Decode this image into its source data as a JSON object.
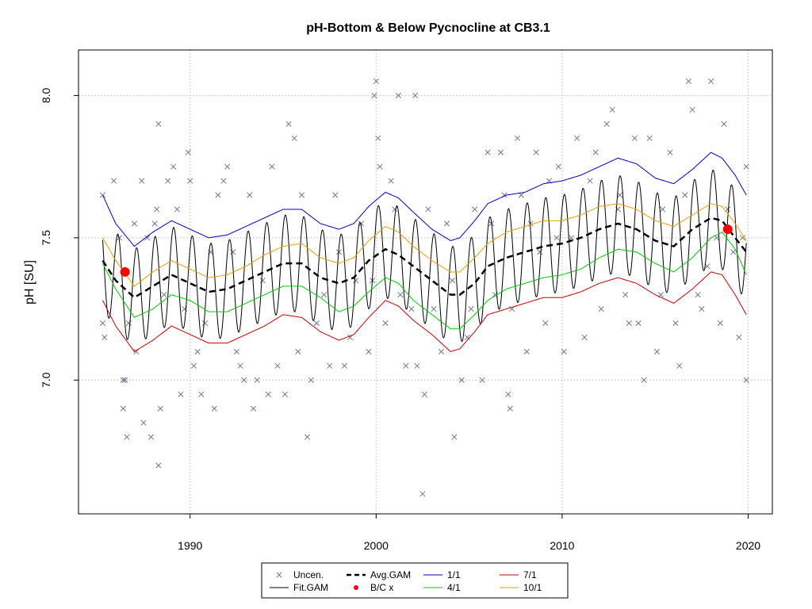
{
  "chart_data": {
    "type": "scatter",
    "title": "pH-Bottom & Below Pycnocline at CB3.1",
    "xlabel": "",
    "ylabel": "pH [SU]",
    "xlim": [
      1984.0,
      2021.3
    ],
    "ylim": [
      6.53,
      8.16
    ],
    "x_ticks": [
      1990,
      2000,
      2010,
      2020
    ],
    "y_ticks": [
      7.0,
      7.5,
      8.0
    ],
    "y_tick_labels": [
      "7.0",
      "7.5",
      "8.0"
    ],
    "grid": true,
    "legend_position": "bottom-center",
    "legend": [
      {
        "label": "Uncen.",
        "symbol": "x",
        "color": "#6a7a8e"
      },
      {
        "label": "Fit.GAM",
        "symbol": "line",
        "color": "#000000"
      },
      {
        "label": "Avg.GAM",
        "symbol": "dashed",
        "color": "#000000"
      },
      {
        "label": "B/C x",
        "symbol": "dot",
        "color": "#ff0000"
      },
      {
        "label": "1/1",
        "symbol": "line",
        "color": "#0000cc"
      },
      {
        "label": "4/1",
        "symbol": "line",
        "color": "#00cc00"
      },
      {
        "label": "7/1",
        "symbol": "line",
        "color": "#cc0000"
      },
      {
        "label": "10/1",
        "symbol": "line",
        "color": "#e6a000"
      }
    ],
    "series": [
      {
        "name": "Uncen.",
        "type": "scatter",
        "color": "#6a7a8e",
        "points": [
          [
            1985.3,
            7.65
          ],
          [
            1985.3,
            7.2
          ],
          [
            1985.4,
            7.15
          ],
          [
            1985.9,
            7.7
          ],
          [
            1986.2,
            7.5
          ],
          [
            1986.4,
            7.0
          ],
          [
            1986.4,
            6.9
          ],
          [
            1986.5,
            7.0
          ],
          [
            1986.6,
            6.8
          ],
          [
            1986.7,
            7.2
          ],
          [
            1987.0,
            7.55
          ],
          [
            1987.1,
            7.1
          ],
          [
            1987.4,
            7.7
          ],
          [
            1987.5,
            6.85
          ],
          [
            1987.7,
            7.5
          ],
          [
            1987.9,
            6.8
          ],
          [
            1988.1,
            7.55
          ],
          [
            1988.2,
            7.6
          ],
          [
            1988.3,
            7.9
          ],
          [
            1988.3,
            6.7
          ],
          [
            1988.4,
            6.9
          ],
          [
            1988.6,
            7.3
          ],
          [
            1988.8,
            7.7
          ],
          [
            1989.1,
            7.75
          ],
          [
            1989.3,
            7.6
          ],
          [
            1989.5,
            6.95
          ],
          [
            1989.7,
            7.25
          ],
          [
            1989.9,
            7.8
          ],
          [
            1990.0,
            7.7
          ],
          [
            1990.2,
            7.05
          ],
          [
            1990.4,
            7.1
          ],
          [
            1990.6,
            6.95
          ],
          [
            1990.8,
            7.2
          ],
          [
            1991.1,
            7.45
          ],
          [
            1991.3,
            6.9
          ],
          [
            1991.5,
            7.65
          ],
          [
            1991.8,
            7.7
          ],
          [
            1992.0,
            7.75
          ],
          [
            1992.3,
            7.45
          ],
          [
            1992.5,
            7.1
          ],
          [
            1992.7,
            7.05
          ],
          [
            1992.9,
            7.0
          ],
          [
            1993.2,
            7.65
          ],
          [
            1993.4,
            6.9
          ],
          [
            1993.6,
            7.0
          ],
          [
            1993.9,
            7.35
          ],
          [
            1994.2,
            6.95
          ],
          [
            1994.4,
            7.75
          ],
          [
            1994.7,
            7.05
          ],
          [
            1995.1,
            6.95
          ],
          [
            1995.3,
            7.9
          ],
          [
            1995.6,
            7.85
          ],
          [
            1995.8,
            7.1
          ],
          [
            1996.0,
            7.65
          ],
          [
            1996.3,
            6.8
          ],
          [
            1996.5,
            7.0
          ],
          [
            1996.8,
            7.2
          ],
          [
            1997.2,
            7.3
          ],
          [
            1997.5,
            7.05
          ],
          [
            1997.8,
            7.65
          ],
          [
            1998.0,
            7.45
          ],
          [
            1998.3,
            7.05
          ],
          [
            1998.6,
            7.15
          ],
          [
            1998.9,
            7.35
          ],
          [
            1999.2,
            7.55
          ],
          [
            1999.6,
            7.1
          ],
          [
            1999.8,
            7.35
          ],
          [
            1999.9,
            8.0
          ],
          [
            2000.0,
            8.05
          ],
          [
            2000.1,
            7.85
          ],
          [
            2000.2,
            7.75
          ],
          [
            2000.5,
            7.2
          ],
          [
            2000.8,
            7.7
          ],
          [
            2001.0,
            7.6
          ],
          [
            2001.2,
            8.0
          ],
          [
            2001.3,
            7.3
          ],
          [
            2001.6,
            7.05
          ],
          [
            2001.9,
            7.25
          ],
          [
            2002.1,
            8.0
          ],
          [
            2002.2,
            7.05
          ],
          [
            2002.5,
            6.6
          ],
          [
            2002.6,
            6.95
          ],
          [
            2002.8,
            7.6
          ],
          [
            2003.1,
            7.25
          ],
          [
            2003.5,
            7.1
          ],
          [
            2003.8,
            7.55
          ],
          [
            2004.1,
            7.35
          ],
          [
            2004.2,
            6.8
          ],
          [
            2004.6,
            7.0
          ],
          [
            2004.9,
            7.15
          ],
          [
            2005.1,
            7.25
          ],
          [
            2005.3,
            7.6
          ],
          [
            2005.7,
            7.0
          ],
          [
            2006.0,
            7.8
          ],
          [
            2006.2,
            7.55
          ],
          [
            2006.4,
            7.3
          ],
          [
            2006.7,
            7.8
          ],
          [
            2006.9,
            7.65
          ],
          [
            2007.1,
            6.95
          ],
          [
            2007.2,
            6.9
          ],
          [
            2007.3,
            7.25
          ],
          [
            2007.6,
            7.85
          ],
          [
            2007.8,
            7.65
          ],
          [
            2008.1,
            7.1
          ],
          [
            2008.3,
            7.55
          ],
          [
            2008.6,
            7.8
          ],
          [
            2008.8,
            7.45
          ],
          [
            2009.1,
            7.2
          ],
          [
            2009.3,
            7.7
          ],
          [
            2009.7,
            7.5
          ],
          [
            2010.1,
            7.1
          ],
          [
            2010.5,
            7.5
          ],
          [
            2010.8,
            7.85
          ],
          [
            2011.2,
            7.15
          ],
          [
            2011.5,
            7.7
          ],
          [
            2011.8,
            7.8
          ],
          [
            2012.1,
            7.25
          ],
          [
            2012.4,
            7.9
          ],
          [
            2012.7,
            7.95
          ],
          [
            2013.1,
            7.65
          ],
          [
            2013.4,
            7.3
          ],
          [
            2013.6,
            7.2
          ],
          [
            2013.9,
            7.85
          ],
          [
            2014.1,
            7.2
          ],
          [
            2014.4,
            7.0
          ],
          [
            2014.7,
            7.85
          ],
          [
            2015.1,
            7.1
          ],
          [
            2015.4,
            7.6
          ],
          [
            2015.8,
            7.8
          ],
          [
            2016.1,
            7.2
          ],
          [
            2016.3,
            7.05
          ],
          [
            2016.6,
            7.65
          ],
          [
            2016.8,
            8.05
          ],
          [
            2017.0,
            7.95
          ],
          [
            2017.3,
            7.3
          ],
          [
            2017.5,
            7.25
          ],
          [
            2017.8,
            7.4
          ],
          [
            2018.0,
            8.05
          ],
          [
            2018.3,
            7.5
          ],
          [
            2018.5,
            7.2
          ],
          [
            2018.7,
            7.9
          ],
          [
            2018.9,
            7.6
          ],
          [
            2019.2,
            7.45
          ],
          [
            2019.5,
            7.15
          ],
          [
            2019.7,
            7.5
          ],
          [
            2019.9,
            7.0
          ],
          [
            2019.9,
            7.75
          ],
          [
            2015.3,
            7.3
          ],
          [
            2009.8,
            7.75
          ],
          [
            2013.0,
            7.6
          ]
        ]
      },
      {
        "name": "Fit.GAM",
        "type": "line",
        "color": "#000000",
        "amplitude": 0.17,
        "phase_peak_fraction": 0.12
      },
      {
        "name": "Avg.GAM",
        "type": "line",
        "style": "dashed",
        "color": "#000000",
        "x": [
          1985.3,
          1986.0,
          1987.0,
          1988.0,
          1989.0,
          1990.0,
          1991.0,
          1992.0,
          1993.0,
          1994.0,
          1995.0,
          1996.0,
          1997.0,
          1998.0,
          1998.8,
          1999.6,
          2000.5,
          2001.2,
          2002.0,
          2003.0,
          2004.0,
          2004.5,
          2005.3,
          2006.0,
          2007.0,
          2008.0,
          2009.0,
          2010.0,
          2011.0,
          2012.0,
          2013.0,
          2014.0,
          2015.0,
          2016.0,
          2017.0,
          2018.0,
          2018.6,
          2019.3,
          2019.9
        ],
        "y": [
          7.42,
          7.35,
          7.29,
          7.33,
          7.37,
          7.34,
          7.31,
          7.32,
          7.35,
          7.38,
          7.41,
          7.41,
          7.36,
          7.34,
          7.36,
          7.42,
          7.46,
          7.44,
          7.4,
          7.35,
          7.3,
          7.3,
          7.34,
          7.4,
          7.43,
          7.45,
          7.47,
          7.48,
          7.5,
          7.53,
          7.55,
          7.53,
          7.49,
          7.47,
          7.53,
          7.57,
          7.56,
          7.5,
          7.45
        ]
      },
      {
        "name": "1/1",
        "type": "line",
        "color": "#0000cc",
        "x": [
          1985.3,
          1986.0,
          1987.0,
          1988.0,
          1989.0,
          1990.0,
          1991.0,
          1992.0,
          1993.0,
          1994.0,
          1995.0,
          1996.0,
          1997.0,
          1998.0,
          1998.8,
          1999.6,
          2000.5,
          2001.2,
          2002.0,
          2003.0,
          2004.0,
          2004.5,
          2005.3,
          2006.0,
          2007.0,
          2008.0,
          2009.0,
          2010.0,
          2011.0,
          2012.0,
          2013.0,
          2014.0,
          2015.0,
          2016.0,
          2017.0,
          2018.0,
          2018.6,
          2019.3,
          2019.9
        ],
        "y": [
          7.65,
          7.55,
          7.47,
          7.52,
          7.56,
          7.53,
          7.5,
          7.51,
          7.54,
          7.57,
          7.6,
          7.6,
          7.55,
          7.53,
          7.55,
          7.61,
          7.66,
          7.64,
          7.59,
          7.53,
          7.49,
          7.5,
          7.56,
          7.62,
          7.65,
          7.66,
          7.69,
          7.7,
          7.72,
          7.75,
          7.78,
          7.76,
          7.71,
          7.69,
          7.74,
          7.8,
          7.78,
          7.72,
          7.65
        ]
      },
      {
        "name": "10/1",
        "type": "line",
        "color": "#e6a000",
        "x": [
          1985.3,
          1986.0,
          1987.0,
          1988.0,
          1989.0,
          1990.0,
          1991.0,
          1992.0,
          1993.0,
          1994.0,
          1995.0,
          1996.0,
          1997.0,
          1998.0,
          1998.8,
          1999.6,
          2000.5,
          2001.2,
          2002.0,
          2003.0,
          2004.0,
          2004.5,
          2005.3,
          2006.0,
          2007.0,
          2008.0,
          2009.0,
          2010.0,
          2011.0,
          2012.0,
          2013.0,
          2014.0,
          2015.0,
          2016.0,
          2017.0,
          2018.0,
          2018.6,
          2019.3,
          2019.9
        ],
        "y": [
          7.5,
          7.42,
          7.33,
          7.38,
          7.42,
          7.39,
          7.36,
          7.37,
          7.4,
          7.44,
          7.47,
          7.48,
          7.43,
          7.41,
          7.43,
          7.49,
          7.54,
          7.52,
          7.47,
          7.42,
          7.38,
          7.38,
          7.43,
          7.48,
          7.52,
          7.54,
          7.56,
          7.56,
          7.58,
          7.61,
          7.62,
          7.6,
          7.56,
          7.54,
          7.58,
          7.62,
          7.61,
          7.55,
          7.49
        ]
      },
      {
        "name": "4/1",
        "type": "line",
        "color": "#00cc00",
        "x": [
          1985.3,
          1986.0,
          1987.0,
          1988.0,
          1989.0,
          1990.0,
          1991.0,
          1992.0,
          1993.0,
          1994.0,
          1995.0,
          1996.0,
          1997.0,
          1998.0,
          1998.8,
          1999.6,
          2000.5,
          2001.2,
          2002.0,
          2003.0,
          2004.0,
          2004.5,
          2005.3,
          2006.0,
          2007.0,
          2008.0,
          2009.0,
          2010.0,
          2011.0,
          2012.0,
          2013.0,
          2014.0,
          2015.0,
          2016.0,
          2017.0,
          2018.0,
          2018.6,
          2019.3,
          2019.9
        ],
        "y": [
          7.41,
          7.32,
          7.22,
          7.25,
          7.3,
          7.28,
          7.24,
          7.24,
          7.27,
          7.3,
          7.33,
          7.33,
          7.29,
          7.24,
          7.26,
          7.31,
          7.36,
          7.34,
          7.28,
          7.23,
          7.18,
          7.18,
          7.23,
          7.28,
          7.32,
          7.34,
          7.36,
          7.37,
          7.39,
          7.43,
          7.46,
          7.45,
          7.41,
          7.38,
          7.43,
          7.5,
          7.52,
          7.46,
          7.37
        ]
      },
      {
        "name": "7/1",
        "type": "line",
        "color": "#cc0000",
        "x": [
          1985.3,
          1986.0,
          1987.0,
          1988.0,
          1989.0,
          1990.0,
          1991.0,
          1992.0,
          1993.0,
          1994.0,
          1995.0,
          1996.0,
          1997.0,
          1998.0,
          1998.8,
          1999.6,
          2000.5,
          2001.2,
          2002.0,
          2003.0,
          2004.0,
          2004.5,
          2005.3,
          2006.0,
          2007.0,
          2008.0,
          2009.0,
          2010.0,
          2011.0,
          2012.0,
          2013.0,
          2014.0,
          2015.0,
          2016.0,
          2017.0,
          2018.0,
          2018.6,
          2019.3,
          2019.9
        ],
        "y": [
          7.28,
          7.19,
          7.1,
          7.14,
          7.19,
          7.16,
          7.13,
          7.13,
          7.16,
          7.19,
          7.23,
          7.22,
          7.17,
          7.14,
          7.16,
          7.22,
          7.28,
          7.26,
          7.21,
          7.16,
          7.1,
          7.11,
          7.17,
          7.23,
          7.25,
          7.27,
          7.29,
          7.29,
          7.31,
          7.34,
          7.36,
          7.34,
          7.3,
          7.27,
          7.32,
          7.38,
          7.37,
          7.3,
          7.23
        ]
      },
      {
        "name": "B/C x",
        "type": "scatter",
        "color": "#ff0000",
        "points": [
          [
            1986.5,
            7.38
          ],
          [
            2018.9,
            7.53
          ]
        ]
      }
    ]
  }
}
